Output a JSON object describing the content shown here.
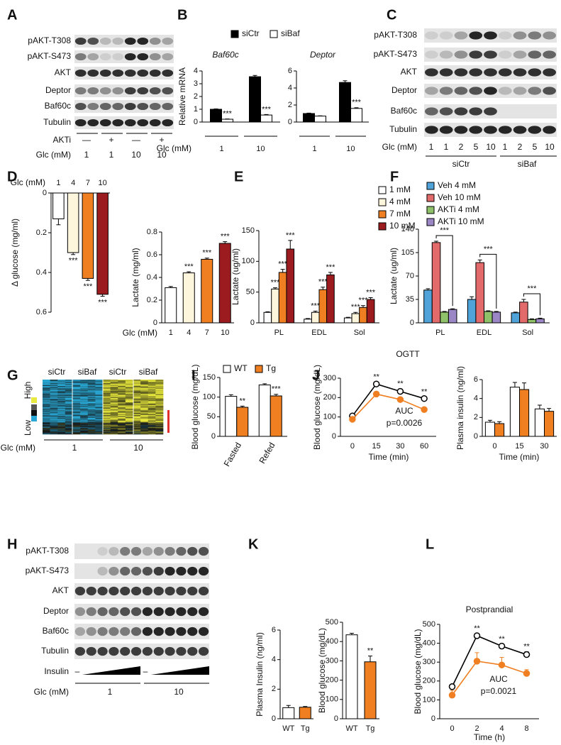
{
  "panel_labels": [
    "A",
    "B",
    "C",
    "D",
    "E",
    "F",
    "G",
    "H",
    "I",
    "J",
    "K",
    "L"
  ],
  "blots": [
    {
      "rows": [
        "pAKT-T308",
        "pAKT-S473",
        "AKT",
        "Deptor",
        "Baf60c",
        "Tubulin"
      ],
      "conditions": [
        {
          "label": "AKTi",
          "lanes": [
            "—",
            "+",
            "—",
            "+"
          ]
        },
        {
          "label": "Glc (mM)",
          "lanes": [
            "1",
            "1",
            "10",
            "10"
          ]
        }
      ]
    },
    {
      "rows": [
        "pAKT-T308",
        "pAKT-S473",
        "AKT",
        "Deptor",
        "Baf60c",
        "Tubulin"
      ],
      "conditions": [
        {
          "label": "Glc (mM)",
          "lanes": [
            "1",
            "1",
            "2",
            "5",
            "10",
            "1",
            "2",
            "5",
            "10"
          ]
        }
      ],
      "groups": [
        "siCtr",
        "siBaf"
      ]
    },
    {
      "rows": [
        "pAKT-T308",
        "pAKT-S473",
        "AKT",
        "Deptor",
        "Baf60c",
        "Tubulin"
      ],
      "conditions": [
        {
          "label": "Insulin",
          "lanes": [
            "–",
            "–"
          ]
        },
        {
          "label": "Glc (mM)",
          "lanes": [
            "1",
            "10"
          ]
        }
      ]
    }
  ],
  "heatmap": {
    "columns": [
      "siCtr",
      "siBaf",
      "siCtr",
      "siBaf"
    ],
    "scale_high": "High",
    "scale_low": "Low",
    "x_label": "Glc (mM)",
    "groups": [
      "1",
      "10"
    ]
  },
  "chart_data": [
    {
      "type": "bar",
      "subtitle": "Baf60c",
      "y_label": "Relative mRNA",
      "x_label": "Glc (mM)",
      "categories": [
        "1",
        "10"
      ],
      "series": [
        {
          "name": "siCtr",
          "color": "#000000",
          "values": [
            1.0,
            3.55
          ],
          "errors": [
            0.03,
            0.1
          ]
        },
        {
          "name": "siBaf",
          "color": "#ffffff",
          "values": [
            0.22,
            0.55
          ],
          "errors": [
            0.02,
            0.04
          ],
          "stars": [
            "***",
            "***"
          ]
        }
      ],
      "ylim": [
        0,
        4
      ],
      "yticks": [
        0,
        1,
        2,
        3,
        4
      ],
      "legend": true
    },
    {
      "type": "bar",
      "subtitle": "Deptor",
      "categories": [
        "1",
        "10"
      ],
      "series": [
        {
          "color": "#000000",
          "values": [
            1.0,
            4.65
          ],
          "errors": [
            0.05,
            0.2
          ]
        },
        {
          "color": "#ffffff",
          "values": [
            0.7,
            1.6
          ],
          "errors": [
            0.03,
            0.08
          ],
          "stars": [
            null,
            "***"
          ]
        }
      ],
      "ylim": [
        0,
        6
      ],
      "yticks": [
        0,
        2,
        4,
        6
      ]
    },
    {
      "type": "bar",
      "y_label": "Δ glucose (mg/ml)",
      "x_label": "Glc (mM)",
      "categories": [
        "1",
        "4",
        "7",
        "10"
      ],
      "inverted": true,
      "series": [
        {
          "colors": [
            "#ffffff",
            "#fdf5dc",
            "#f07f22",
            "#9b1b1f"
          ],
          "values": [
            0.13,
            0.3,
            0.43,
            0.51
          ],
          "errors": [
            0.03,
            0.01,
            0.01,
            0.01
          ],
          "stars": [
            null,
            "***",
            "***",
            "***"
          ]
        }
      ],
      "ylim": [
        0,
        0.6
      ],
      "yticks": [
        0,
        0.2,
        0.4,
        0.6
      ]
    },
    {
      "type": "bar",
      "y_label": "Lactate (mg/ml)",
      "x_label": "Glc (mM)",
      "categories": [
        "1",
        "4",
        "7",
        "10"
      ],
      "series": [
        {
          "colors": [
            "#ffffff",
            "#fdf5dc",
            "#f07f22",
            "#9b1b1f"
          ],
          "values": [
            0.31,
            0.44,
            0.56,
            0.7
          ],
          "errors": [
            0.01,
            0.01,
            0.01,
            0.015
          ],
          "stars": [
            null,
            "***",
            "***",
            "***"
          ]
        }
      ],
      "ylim": [
        0,
        0.8
      ],
      "yticks": [
        0,
        0.2,
        0.4,
        0.6,
        0.8
      ]
    },
    {
      "type": "bar",
      "y_label": "Lactate (ug/ml)",
      "categories": [
        "PL",
        "EDL",
        "Sol"
      ],
      "series": [
        {
          "name": "1 mM",
          "color": "#ffffff",
          "values": [
            17,
            6,
            8
          ],
          "errors": [
            1,
            1,
            1
          ]
        },
        {
          "name": "4 mM",
          "color": "#fdf5dc",
          "values": [
            55,
            17,
            15
          ],
          "errors": [
            2,
            2,
            2
          ],
          "stars": [
            "***",
            "***",
            "***"
          ]
        },
        {
          "name": "7 mM",
          "color": "#f07f22",
          "values": [
            82,
            54,
            25
          ],
          "errors": [
            5,
            4,
            3
          ],
          "stars": [
            "***",
            "***",
            "***"
          ]
        },
        {
          "name": "10 mM",
          "color": "#9b1b1f",
          "values": [
            120,
            78,
            38
          ],
          "errors": [
            14,
            4,
            3
          ],
          "stars": [
            "***",
            "***",
            "***"
          ]
        }
      ],
      "ylim": [
        0,
        150
      ],
      "yticks": [
        0,
        50,
        100,
        150
      ],
      "legend": true
    },
    {
      "type": "bar",
      "y_label": "Lactate (ug/ml)",
      "categories": [
        "PL",
        "EDL",
        "Sol"
      ],
      "series": [
        {
          "name": "Veh 4 mM",
          "color": "#4fa3d8",
          "values": [
            49,
            35,
            15
          ],
          "errors": [
            2,
            4,
            1
          ]
        },
        {
          "name": "Veh 10 mM",
          "color": "#e26a6a",
          "values": [
            120,
            90,
            31
          ],
          "errors": [
            2,
            4,
            4
          ]
        },
        {
          "name": "AKTi 4 mM",
          "color": "#8fc06a",
          "values": [
            16,
            17,
            5
          ],
          "errors": [
            1,
            1,
            1
          ]
        },
        {
          "name": "AKTi 10 mM",
          "color": "#9b86c6",
          "values": [
            20,
            16,
            6
          ],
          "errors": [
            1,
            1,
            1
          ]
        }
      ],
      "ylim": [
        0,
        140
      ],
      "yticks": [
        0,
        35,
        70,
        105,
        140
      ],
      "legend": true,
      "annotations": [
        "***",
        "***",
        "***"
      ]
    },
    {
      "type": "bar",
      "y_label": "Blood glucose (mg/dL)",
      "categories": [
        "Fasted",
        "Refed"
      ],
      "series": [
        {
          "name": "WT",
          "color": "#ffffff",
          "values": [
            102,
            131
          ],
          "errors": [
            4,
            3
          ]
        },
        {
          "name": "Tg",
          "color": "#f07f22",
          "values": [
            74,
            103
          ],
          "errors": [
            3,
            4
          ],
          "stars": [
            "**",
            "***"
          ]
        }
      ],
      "ylim": [
        0,
        150
      ],
      "yticks": [
        0,
        50,
        100,
        150
      ],
      "legend": true
    },
    {
      "type": "line",
      "title": "OGTT",
      "y_label": "Blood glucose (mg/dL)",
      "x_label": "Time (min)",
      "categories": [
        "0",
        "15",
        "30",
        "60"
      ],
      "series": [
        {
          "color": "#ffffff",
          "values": [
            105,
            270,
            232,
            195
          ],
          "errors": [
            8,
            10,
            12,
            8
          ],
          "stars": [
            null,
            "**",
            "**",
            "**"
          ]
        },
        {
          "color": "#f07f22",
          "values": [
            88,
            218,
            190,
            138
          ],
          "errors": [
            8,
            12,
            10,
            8
          ]
        }
      ],
      "ylim": [
        0,
        300
      ],
      "yticks": [
        0,
        100,
        200,
        300
      ],
      "annotations": [
        "AUC",
        "p=0.0026"
      ]
    },
    {
      "type": "bar",
      "y_label": "Plasma insulin (ng/ml)",
      "x_label": "Time (min)",
      "categories": [
        "0",
        "15",
        "30"
      ],
      "series": [
        {
          "color": "#ffffff",
          "values": [
            1.5,
            5.2,
            2.9
          ],
          "errors": [
            0.2,
            0.5,
            0.4
          ]
        },
        {
          "color": "#f07f22",
          "values": [
            1.35,
            4.95,
            2.65
          ],
          "errors": [
            0.2,
            0.7,
            0.3
          ]
        }
      ],
      "ylim": [
        0,
        6
      ],
      "yticks": [
        0,
        2,
        4,
        6
      ]
    },
    {
      "type": "bar",
      "y_label": "Plasma Insulin (ng/ml)",
      "categories": [
        "WT",
        "Tg"
      ],
      "series": [
        {
          "colors": [
            "#ffffff",
            "#f07f22"
          ],
          "values": [
            0.75,
            0.78
          ],
          "errors": [
            0.15,
            0.05
          ]
        }
      ],
      "ylim": [
        0,
        6
      ],
      "yticks": [
        0,
        2,
        4,
        6
      ]
    },
    {
      "type": "bar",
      "y_label": "Blood glucose (mg/dL)",
      "categories": [
        "WT",
        "Tg"
      ],
      "series": [
        {
          "colors": [
            "#ffffff",
            "#f07f22"
          ],
          "values": [
            435,
            295
          ],
          "errors": [
            8,
            30
          ],
          "stars": [
            null,
            "**"
          ]
        }
      ],
      "ylim": [
        0,
        500
      ],
      "yticks": [
        0,
        100,
        200,
        300,
        400,
        500
      ]
    },
    {
      "type": "line",
      "title": "Postprandial",
      "y_label": "Blood glucose (mg/dL)",
      "x_label": "Time (h)",
      "categories": [
        "0",
        "2",
        "4",
        "8"
      ],
      "series": [
        {
          "color": "#ffffff",
          "values": [
            170,
            440,
            385,
            340
          ],
          "errors": [
            10,
            10,
            10,
            15
          ],
          "stars": [
            null,
            "**",
            "**",
            "**"
          ]
        },
        {
          "color": "#f07f22",
          "values": [
            125,
            305,
            285,
            240
          ],
          "errors": [
            25,
            45,
            40,
            20
          ]
        }
      ],
      "ylim": [
        0,
        500
      ],
      "yticks": [
        0,
        100,
        200,
        300,
        400,
        500
      ],
      "annotations": [
        "AUC",
        "p=0.0021"
      ]
    }
  ]
}
